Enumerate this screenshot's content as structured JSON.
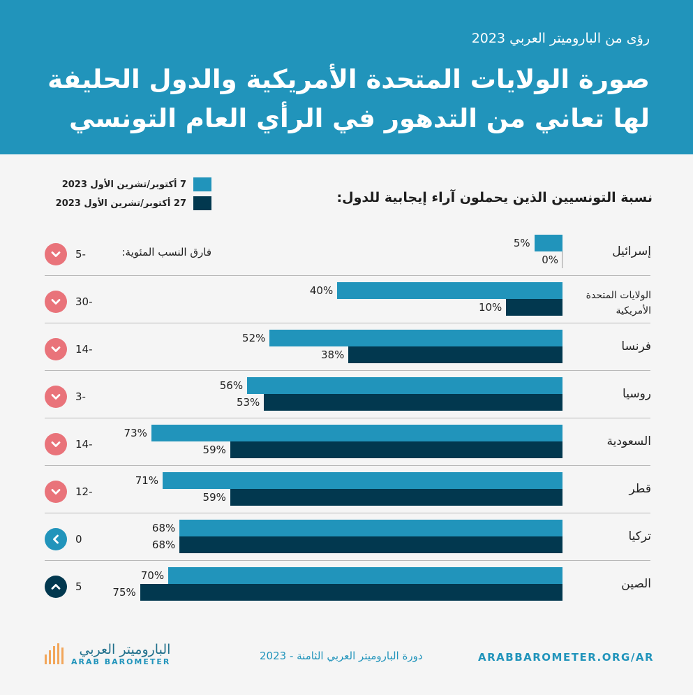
{
  "header": {
    "subtitle": "رؤى من الباروميتر العربي 2023",
    "title": "صورة الولايات المتحدة الأمريكية والدول الحليفة لها تعاني من التدهور في الرأي العام التونسي"
  },
  "colors": {
    "header_bg": "#2194bb",
    "series_before": "#2194bb",
    "series_after": "#02384f",
    "decrease_icon": "#e9737a",
    "no_change_icon": "#2194bb",
    "increase_icon": "#02384f"
  },
  "chart_data": {
    "type": "bar",
    "orientation": "horizontal",
    "title": "نسبة التونسيين الذين يحملون آراء إيجابية للدول:",
    "difference_caption": "فارق النسب المئوية:",
    "legend_position": "top-left",
    "xlim": [
      0,
      100
    ],
    "categories": [
      "إسرائيل",
      "الولايات المتحدة الأمريكية",
      "فرنسا",
      "روسيا",
      "السعودية",
      "قطر",
      "تركيا",
      "الصين"
    ],
    "series": [
      {
        "name": "7 أكتوبر/تشرين الأول 2023",
        "values": [
          5,
          40,
          52,
          56,
          73,
          71,
          68,
          70
        ]
      },
      {
        "name": "27 أكتوبر/تشرين الأول 2023",
        "values": [
          0,
          10,
          38,
          53,
          59,
          59,
          68,
          75
        ]
      }
    ],
    "differences": [
      -5,
      -30,
      -14,
      -3,
      -14,
      -12,
      0,
      5
    ],
    "difference_icons": [
      "chevron-down-icon",
      "chevron-down-icon",
      "chevron-down-icon",
      "chevron-down-icon",
      "chevron-down-icon",
      "chevron-down-icon",
      "chevron-left-icon",
      "chevron-up-icon"
    ]
  },
  "footer": {
    "logo_ar": "الباروميتر العربي",
    "logo_en": "ARAB BAROMETER",
    "center": "دورة الباروميتر العربي الثامنة - 2023",
    "url": "ARABBAROMETER.ORG/AR"
  }
}
